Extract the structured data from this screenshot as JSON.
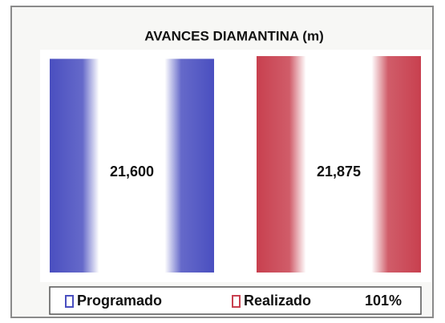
{
  "chart_data": {
    "type": "bar",
    "title": "AVANCES DIAMANTINA (m)",
    "series": [
      {
        "name": "Programado",
        "color": "#4a4fc0",
        "values": [
          21600
        ],
        "value_labels": [
          "21,600"
        ]
      },
      {
        "name": "Realizado",
        "color": "#c8404f",
        "values": [
          21875
        ],
        "value_labels": [
          "21,875"
        ]
      }
    ],
    "annotation": "101%"
  }
}
